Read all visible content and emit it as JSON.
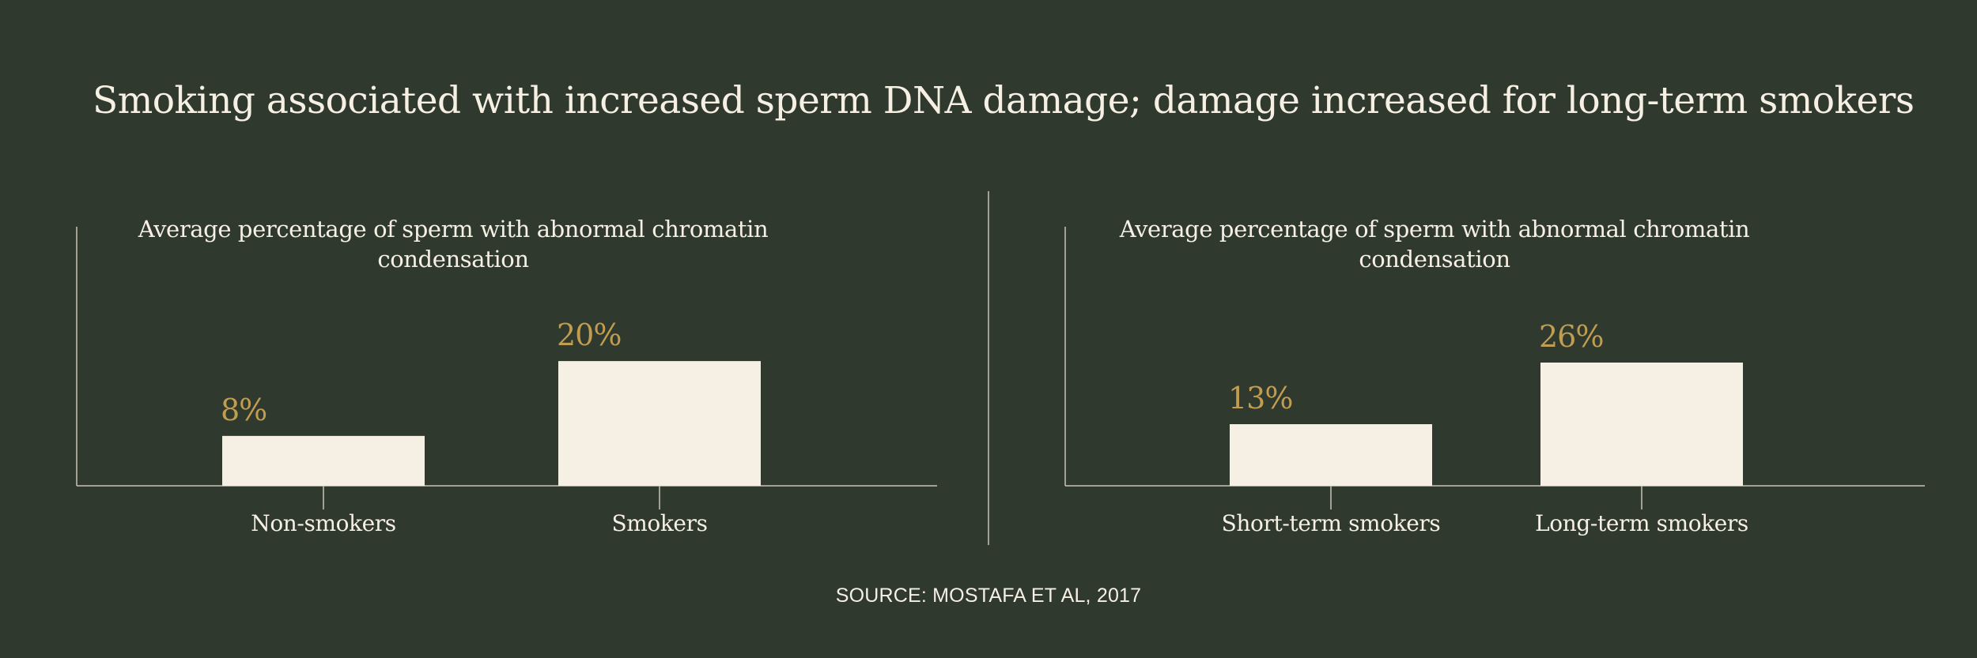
{
  "title": "Smoking associated with increased sperm DNA damage; damage increased for long-term smokers",
  "source": "SOURCE: MOSTAFA ET AL, 2017",
  "colors": {
    "background": "#2f392d",
    "bar": "#f6efe4",
    "value_label": "#c09d50",
    "text": "#f6efe4",
    "axis": "#c8c4b6"
  },
  "chart_data": [
    {
      "type": "bar",
      "title": "Average percentage of sperm with abnormal chromatin condensation",
      "title_lines": [
        "Average percentage of sperm with abnormal chromatin",
        "condensation"
      ],
      "categories": [
        "Non-smokers",
        "Smokers"
      ],
      "values": [
        8,
        20
      ],
      "value_labels": [
        "8%",
        "20%"
      ],
      "ylim": [
        0,
        38
      ],
      "xlabel": "",
      "ylabel": "",
      "grid": false
    },
    {
      "type": "bar",
      "title": "Average percentage of sperm with abnormal chromatin condensation",
      "title_lines": [
        "Average percentage of sperm with abnormal chromatin",
        "condensation"
      ],
      "categories": [
        "Short-term smokers",
        "Long-term smokers"
      ],
      "values": [
        13,
        26
      ],
      "value_labels": [
        "13%",
        "26%"
      ],
      "ylim": [
        0,
        50
      ],
      "xlabel": "",
      "ylabel": "",
      "grid": false
    }
  ]
}
